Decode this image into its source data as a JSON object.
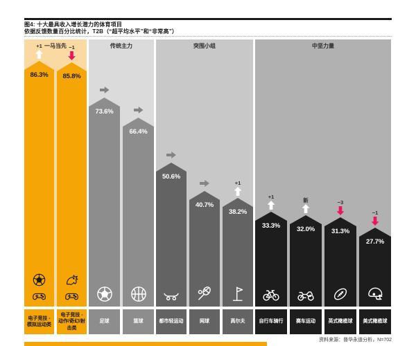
{
  "header": {
    "title": "图4: 十大最具收入增长潜力的体育项目",
    "subtitle": "依据反馈数量百分比统计，T2B（“超平均水平”和“非常高”）"
  },
  "footer": {
    "source": "资料来源：普华永道分析，N=702"
  },
  "colors": {
    "accent_orange": "#F5A506",
    "highlight_panel": "#FBD9A2",
    "pink_down": "#ED145B",
    "flat_gray": "#848484",
    "arrow_up_white": "#FFFFFF",
    "ink": "#1A1A1A"
  },
  "chart_data": {
    "type": "bar",
    "unit": "%",
    "title": "图4: 十大最具收入增长潜力的体育项目",
    "subtitle": "依据反馈数量百分比统计，T2B（“超平均水平”和“非常高”）",
    "ylim": [
      0,
      94
    ],
    "grid": false,
    "legend": false,
    "categories": [
      "电子竞技 - 模拟运动类",
      "电子竞技 - 动作/奇幻/射击类",
      "足球",
      "篮球",
      "都市轻运动",
      "网球",
      "高尔夫",
      "自行车骑行",
      "赛车运动",
      "英式橄榄球",
      "美式橄榄球"
    ],
    "values": [
      86.3,
      85.8,
      73.6,
      66.4,
      50.6,
      40.7,
      38.2,
      33.3,
      32.0,
      31.3,
      27.7
    ],
    "groups": [
      {
        "label": "一马当先",
        "panel_color": "#FBD9A2",
        "bar_color": "#F5A506",
        "text_color": "#1A1A1A",
        "bars": [
          {
            "category": "电子竞技 - 模拟运动类",
            "value": 86.3,
            "value_label": "86.3%",
            "rank_change": "+1",
            "trend": "up",
            "icons": [
              "soccer-ball-icon",
              "game-controller-icon"
            ]
          },
          {
            "category": "电子竞技 - 动作/奇幻/射击类",
            "value": 85.8,
            "value_label": "85.8%",
            "rank_change": "−1",
            "trend": "down",
            "icons": [
              "dragon-icon",
              "game-controller-icon"
            ]
          }
        ]
      },
      {
        "label": "传统主力",
        "panel_color": "#DBDBDB",
        "bar_color": "#8D8D8D",
        "text_color": "#FFFFFF",
        "bars": [
          {
            "category": "足球",
            "value": 73.6,
            "value_label": "73.6%",
            "rank_change": "",
            "trend": "flat",
            "icons": [
              "soccer-ball-icon"
            ]
          },
          {
            "category": "篮球",
            "value": 66.4,
            "value_label": "66.4%",
            "rank_change": "",
            "trend": "flat",
            "icons": [
              "basketball-icon"
            ]
          }
        ]
      },
      {
        "label": "突围小组",
        "panel_color": "#C8C8C8",
        "bar_color": "#636363",
        "text_color": "#FFFFFF",
        "bars": [
          {
            "category": "都市轻运动",
            "value": 50.6,
            "value_label": "50.6%",
            "rank_change": "",
            "trend": "flat",
            "icons": [
              "skateboard-icon"
            ]
          },
          {
            "category": "网球",
            "value": 40.7,
            "value_label": "40.7%",
            "rank_change": "",
            "trend": "flat",
            "icons": [
              "tennis-racket-icon"
            ]
          },
          {
            "category": "高尔夫",
            "value": 38.2,
            "value_label": "38.2%",
            "rank_change": "+1",
            "trend": "up",
            "icons": [
              "golf-flag-icon"
            ]
          }
        ]
      },
      {
        "label": "中坚力量",
        "panel_color": "#B1B1B1",
        "bar_color": "#1D1D1D",
        "text_color": "#FFFFFF",
        "bars": [
          {
            "category": "自行车骑行",
            "value": 33.3,
            "value_label": "33.3%",
            "rank_change": "+1",
            "trend": "up",
            "icons": [
              "bicycle-icon"
            ]
          },
          {
            "category": "赛车运动",
            "value": 32.0,
            "value_label": "32.0%",
            "rank_change": "新",
            "trend": "up",
            "icons": [
              "motorcycle-icon"
            ]
          },
          {
            "category": "英式橄榄球",
            "value": 31.3,
            "value_label": "31.3%",
            "rank_change": "−3",
            "trend": "down",
            "icons": [
              "rugby-ball-icon"
            ]
          },
          {
            "category": "美式橄榄球",
            "value": 27.7,
            "value_label": "27.7%",
            "rank_change": "−1",
            "trend": "down",
            "icons": [
              "football-helmet-icon"
            ]
          }
        ]
      }
    ]
  }
}
